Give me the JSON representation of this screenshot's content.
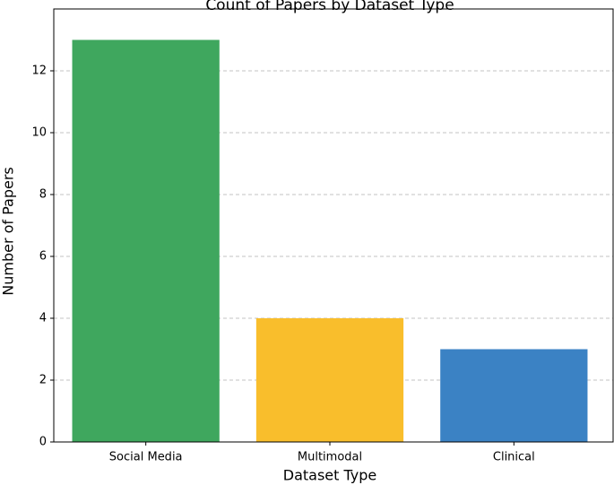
{
  "chart_data": {
    "type": "bar",
    "title": "Count of Papers by Dataset Type",
    "x_label": "Dataset Type",
    "y_label": "Number of Papers",
    "categories": [
      "Social Media",
      "Multimodal",
      "Clinical"
    ],
    "values": [
      13,
      4,
      3
    ],
    "colors": [
      "#3fa75e",
      "#f9be2c",
      "#3b82c4"
    ],
    "ylim": [
      0,
      14
    ],
    "yticks": [
      0,
      2,
      4,
      6,
      8,
      10,
      12
    ],
    "grid": true
  }
}
